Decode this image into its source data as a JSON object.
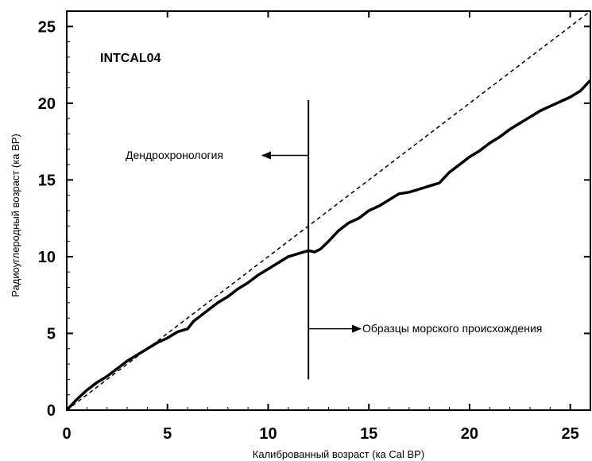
{
  "chart_data": {
    "type": "line",
    "title": "INTCAL04",
    "xlabel": "Калиброванный возраст (ка Cal BP)",
    "ylabel": "Радиоуглеродный возраст (ка BP)",
    "xlim": [
      0,
      26
    ],
    "ylim": [
      0,
      26
    ],
    "xticks": [
      0,
      5,
      10,
      15,
      20,
      25
    ],
    "yticks": [
      0,
      5,
      10,
      15,
      20,
      25
    ],
    "grid": false,
    "series": [
      {
        "style": "dashed",
        "x": [
          0,
          26
        ],
        "y": [
          0,
          26
        ]
      },
      {
        "style": "solid",
        "x": [
          0,
          0.5,
          1,
          1.5,
          2,
          2.5,
          3,
          3.5,
          4,
          4.5,
          5,
          5.5,
          6,
          6.3,
          6.5,
          7,
          7.5,
          8,
          8.5,
          9,
          9.5,
          10,
          10.5,
          11,
          11.5,
          12,
          12.3,
          12.6,
          13,
          13.5,
          14,
          14.5,
          15,
          15.5,
          16,
          16.5,
          17,
          17.5,
          18,
          18.5,
          19,
          19.5,
          20,
          20.5,
          21,
          21.5,
          22,
          22.5,
          23,
          23.5,
          24,
          24.5,
          25,
          25.5,
          26
        ],
        "y": [
          0,
          0.7,
          1.3,
          1.8,
          2.2,
          2.7,
          3.2,
          3.6,
          4.0,
          4.4,
          4.7,
          5.1,
          5.3,
          5.8,
          6.0,
          6.5,
          7.0,
          7.4,
          7.9,
          8.3,
          8.8,
          9.2,
          9.6,
          10.0,
          10.2,
          10.4,
          10.3,
          10.5,
          11.0,
          11.7,
          12.2,
          12.5,
          13.0,
          13.3,
          13.7,
          14.1,
          14.2,
          14.4,
          14.6,
          14.8,
          15.5,
          16.0,
          16.5,
          16.9,
          17.4,
          17.8,
          18.3,
          18.7,
          19.1,
          19.5,
          19.8,
          20.1,
          20.4,
          20.8,
          21.5
        ]
      }
    ],
    "annotations": {
      "vertical_line_x": 12,
      "vertical_line_y": [
        2,
        20.2
      ],
      "left_label": "Дендрохронология",
      "left_arrow_y": 16.6,
      "right_label": "Образцы морского происхождения",
      "right_arrow_y": 5.3
    }
  }
}
